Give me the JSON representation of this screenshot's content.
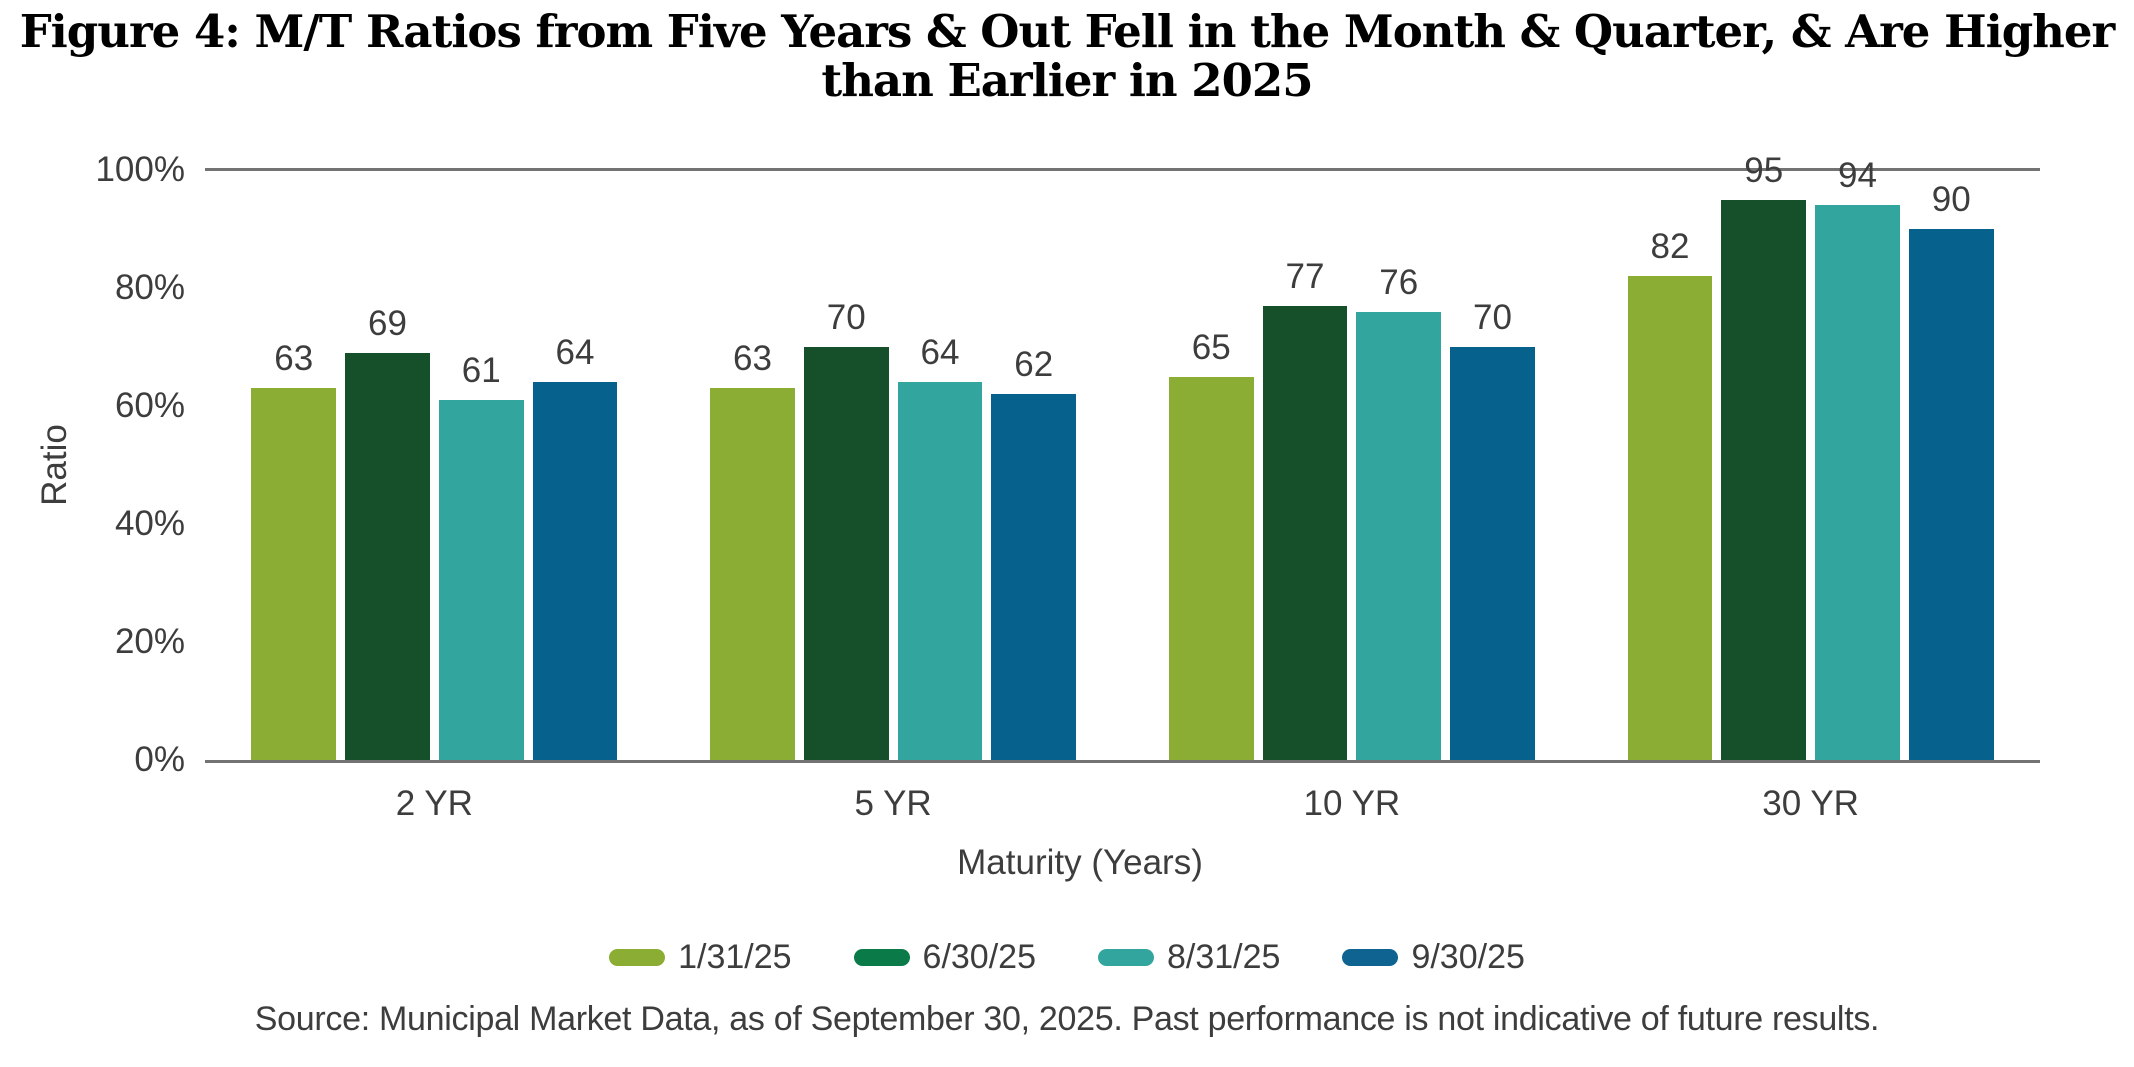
{
  "title": {
    "line1": "Figure 4: M/T Ratios from Five Years & Out Fell in the Month & Quarter, & Are Higher",
    "line2": "than Earlier in 2025"
  },
  "chart_data": {
    "type": "bar",
    "categories": [
      "2 YR",
      "5 YR",
      "10 YR",
      "30 YR"
    ],
    "series": [
      {
        "name": "1/31/25",
        "color": "#8CAD33",
        "legend_color": "#8CAD33",
        "values": [
          63,
          63,
          65,
          82
        ]
      },
      {
        "name": "6/30/25",
        "color": "#15502B",
        "legend_color": "#0B7A49",
        "values": [
          69,
          70,
          77,
          95
        ]
      },
      {
        "name": "8/31/25",
        "color": "#32A69E",
        "legend_color": "#32A69E",
        "values": [
          61,
          64,
          76,
          94
        ]
      },
      {
        "name": "9/30/25",
        "color": "#06618D",
        "legend_color": "#0E6390",
        "values": [
          64,
          62,
          70,
          90
        ]
      }
    ],
    "xlabel": "Maturity (Years)",
    "ylabel": "Ratio",
    "ylim": [
      0,
      100
    ],
    "y_ticks": [
      {
        "value": 100,
        "label": "100%"
      },
      {
        "value": 80,
        "label": "80%"
      },
      {
        "value": 60,
        "label": "60%"
      },
      {
        "value": 40,
        "label": "40%"
      },
      {
        "value": 20,
        "label": "20%"
      },
      {
        "value": 0,
        "label": "0%"
      }
    ],
    "gridlines": "top 100% line and zero baseline only",
    "legend_position": "bottom-center",
    "axis_line_color": "#737373"
  },
  "source_note": "Source: Municipal Market Data, as of September 30, 2025. Past performance is not indicative of future results."
}
